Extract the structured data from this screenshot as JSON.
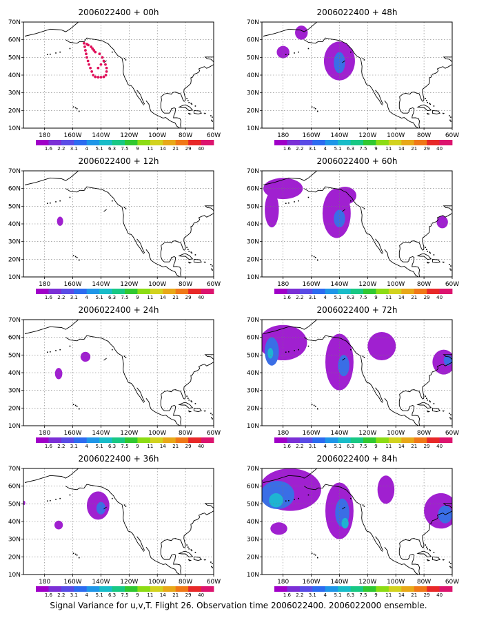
{
  "chart_data": {
    "type": "heatmap",
    "caption": "Signal Variance for u,v,T. Flight 26. Observation time 2006022400. 2006022000 ensemble.",
    "panels": [
      {
        "title": "2006022400 + 00h",
        "blobs": [],
        "dots": true
      },
      {
        "title": "2006022400 + 12h",
        "blobs": [
          {
            "lon": -169,
            "lat": 41.5,
            "rx": 2.2,
            "ry": 2.6,
            "level": 0
          }
        ]
      },
      {
        "title": "2006022400 + 24h",
        "blobs": [
          {
            "lon": -170,
            "lat": 39.5,
            "rx": 2.6,
            "ry": 3.2,
            "level": 0
          },
          {
            "lon": -151,
            "lat": 49,
            "rx": 3.5,
            "ry": 2.8,
            "level": 0
          }
        ]
      },
      {
        "title": "2006022400 + 36h",
        "blobs": [
          {
            "lon": -142,
            "lat": 49,
            "rx": 8,
            "ry": 8,
            "level": 0
          },
          {
            "lon": -140,
            "lat": 47.5,
            "rx": 3.2,
            "ry": 3.5,
            "level": 1
          },
          {
            "lon": -170,
            "lat": 38,
            "rx": 3,
            "ry": 2.5,
            "level": 0
          },
          {
            "lon": -194.5,
            "lat": 50.5,
            "rx": 0.8,
            "ry": 1.2,
            "level": 0
          }
        ]
      },
      {
        "title": "2006022400 + 48h",
        "blobs": [
          {
            "lon": -140,
            "lat": 48,
            "rx": 11,
            "ry": 11,
            "level": 0
          },
          {
            "lon": -140,
            "lat": 47,
            "rx": 4,
            "ry": 6,
            "level": 1
          },
          {
            "lon": -167,
            "lat": 64,
            "rx": 4.5,
            "ry": 4,
            "level": 0
          },
          {
            "lon": -180,
            "lat": 53,
            "rx": 4.5,
            "ry": 3.5,
            "level": 0
          }
        ]
      },
      {
        "title": "2006022400 + 60h",
        "blobs": [
          {
            "lon": -180,
            "lat": 60,
            "rx": 14,
            "ry": 6,
            "level": 0
          },
          {
            "lon": -188,
            "lat": 48,
            "rx": 5,
            "ry": 10,
            "level": 0
          },
          {
            "lon": -142,
            "lat": 46,
            "rx": 10,
            "ry": 14,
            "level": 0
          },
          {
            "lon": -140,
            "lat": 43,
            "rx": 4,
            "ry": 5,
            "level": 1
          },
          {
            "lon": -136,
            "lat": 56,
            "rx": 8,
            "ry": 5,
            "level": 0
          },
          {
            "lon": -67,
            "lat": 41,
            "rx": 4,
            "ry": 3.5,
            "level": 0
          }
        ]
      },
      {
        "title": "2006022400 + 72h",
        "blobs": [
          {
            "lon": -180,
            "lat": 57,
            "rx": 17,
            "ry": 10,
            "level": 0
          },
          {
            "lon": -188,
            "lat": 52,
            "rx": 5,
            "ry": 8,
            "level": 1
          },
          {
            "lon": -189,
            "lat": 51,
            "rx": 2,
            "ry": 3,
            "level": 2
          },
          {
            "lon": -140,
            "lat": 46,
            "rx": 10,
            "ry": 16,
            "level": 0
          },
          {
            "lon": -137,
            "lat": 44,
            "rx": 4,
            "ry": 6,
            "level": 1
          },
          {
            "lon": -110,
            "lat": 55,
            "rx": 10,
            "ry": 8,
            "level": 0
          },
          {
            "lon": -66,
            "lat": 46,
            "rx": 8,
            "ry": 7,
            "level": 0
          },
          {
            "lon": -63,
            "lat": 47,
            "rx": 3,
            "ry": 3,
            "level": 1
          }
        ]
      },
      {
        "title": "2006022400 + 84h",
        "blobs": [
          {
            "lon": -175,
            "lat": 58,
            "rx": 22,
            "ry": 12,
            "level": 0
          },
          {
            "lon": -184,
            "lat": 55,
            "rx": 12,
            "ry": 8,
            "level": 1
          },
          {
            "lon": -185,
            "lat": 52,
            "rx": 5,
            "ry": 4,
            "level": 2
          },
          {
            "lon": -140,
            "lat": 46,
            "rx": 10,
            "ry": 16,
            "level": 0
          },
          {
            "lon": -138,
            "lat": 45,
            "rx": 5,
            "ry": 8,
            "level": 1
          },
          {
            "lon": -136,
            "lat": 39,
            "rx": 2.5,
            "ry": 3,
            "level": 2
          },
          {
            "lon": -107,
            "lat": 58,
            "rx": 6,
            "ry": 8,
            "level": 0
          },
          {
            "lon": -183,
            "lat": 36,
            "rx": 6,
            "ry": 3.5,
            "level": 0
          },
          {
            "lon": -68,
            "lat": 46,
            "rx": 12,
            "ry": 10,
            "level": 0
          },
          {
            "lon": -65,
            "lat": 44,
            "rx": 5,
            "ry": 5,
            "level": 1
          }
        ]
      }
    ],
    "xlim": [
      -195,
      -60
    ],
    "ylim": [
      10,
      70
    ],
    "xticks": [
      -180,
      -160,
      -140,
      -120,
      -100,
      -80,
      -60
    ],
    "xtick_labels": [
      "180",
      "160W",
      "140W",
      "120W",
      "100W",
      "80W",
      "60W"
    ],
    "yticks": [
      10,
      20,
      30,
      40,
      50,
      60,
      70
    ],
    "ytick_labels": [
      "10N",
      "20N",
      "30N",
      "40N",
      "50N",
      "60N",
      "70N"
    ],
    "grid": true,
    "colorbar_labels": [
      "1.6",
      "2.2",
      "3.1",
      "4",
      "5.1",
      "6.3",
      "7.5",
      "9",
      "11",
      "14",
      "21",
      "29",
      "40"
    ],
    "colorbar_colors": [
      "#a000c8",
      "#7b2fd6",
      "#5a4ce6",
      "#2c6bf0",
      "#1e96e8",
      "#18bcc8",
      "#18c884",
      "#30c830",
      "#8cdc14",
      "#d2d21e",
      "#e8a818",
      "#f07818",
      "#e82828",
      "#dc146e"
    ],
    "fill_colors": [
      "#a020d0",
      "#3a6ee6",
      "#1eb4d2"
    ]
  }
}
